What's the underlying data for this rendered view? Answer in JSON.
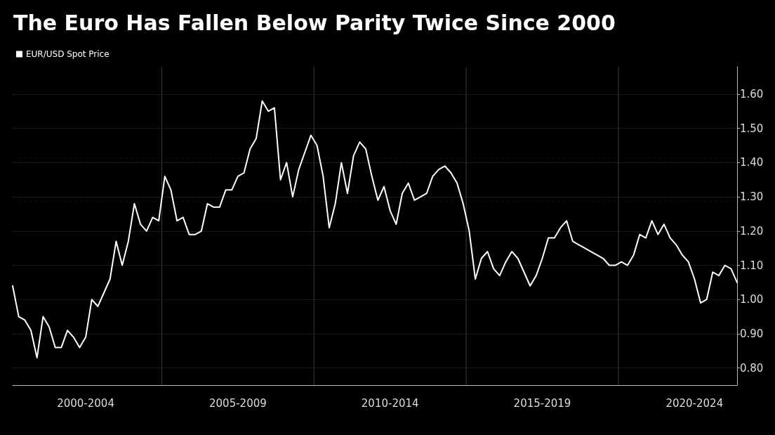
{
  "chart_data": {
    "type": "line",
    "title": "The Euro Has Fallen Below Parity Twice Since 2000",
    "categories": [
      null,
      null,
      null,
      null,
      null,
      null,
      null,
      null,
      null,
      null,
      null,
      null,
      "2000-2004",
      null,
      null,
      null,
      null,
      null,
      null,
      null,
      null,
      null,
      null,
      null,
      null,
      null,
      null,
      null,
      null,
      null,
      null,
      null,
      null,
      null,
      null,
      null,
      null,
      "2005-2009",
      null,
      null,
      null,
      null,
      null,
      null,
      null,
      null,
      null,
      null,
      null,
      null,
      null,
      null,
      null,
      null,
      null,
      null,
      null,
      null,
      null,
      null,
      null,
      null,
      "2010-2014",
      null,
      null,
      null,
      null,
      null,
      null,
      null,
      null,
      null,
      null,
      null,
      null,
      null,
      null,
      null,
      null,
      null,
      null,
      null,
      null,
      null,
      null,
      null,
      null,
      "2015-2019",
      null,
      null,
      null,
      null,
      null,
      null,
      null,
      null,
      null,
      null,
      null,
      null,
      null,
      null,
      null,
      null,
      null,
      null,
      null,
      null,
      null,
      null,
      null,
      null,
      "2020-2024",
      null,
      null,
      null,
      null,
      null,
      null,
      null
    ],
    "ylim": [
      0.75,
      1.68
    ],
    "yticks": [
      {
        "value": 0.8,
        "label": "0.80"
      },
      {
        "value": 0.9,
        "label": "0.90"
      },
      {
        "value": 1.0,
        "label": "1.00"
      },
      {
        "value": 1.1,
        "label": "1.10"
      },
      {
        "value": 1.2,
        "label": "1.20"
      },
      {
        "value": 1.3,
        "label": "1.30"
      },
      {
        "value": 1.4,
        "label": "1.40"
      },
      {
        "value": 1.5,
        "label": "1.50"
      },
      {
        "value": 1.6,
        "label": "1.60"
      }
    ],
    "grid": true,
    "legend": "top left",
    "marker": "none",
    "line_style": "solid",
    "series": [
      {
        "name": "EUR/USD Spot Price",
        "color": "#ffffff",
        "values": [
          1.04,
          0.95,
          0.94,
          0.91,
          0.83,
          0.95,
          0.92,
          0.86,
          0.86,
          0.91,
          0.89,
          0.86,
          0.89,
          1.0,
          0.98,
          1.02,
          1.06,
          1.17,
          1.1,
          1.17,
          1.28,
          1.22,
          1.2,
          1.24,
          1.23,
          1.36,
          1.32,
          1.23,
          1.24,
          1.19,
          1.19,
          1.2,
          1.28,
          1.27,
          1.27,
          1.32,
          1.32,
          1.36,
          1.37,
          1.44,
          1.47,
          1.58,
          1.55,
          1.56,
          1.35,
          1.4,
          1.3,
          1.38,
          1.43,
          1.48,
          1.45,
          1.36,
          1.21,
          1.28,
          1.4,
          1.31,
          1.42,
          1.46,
          1.44,
          1.36,
          1.29,
          1.33,
          1.26,
          1.22,
          1.31,
          1.34,
          1.29,
          1.3,
          1.31,
          1.36,
          1.38,
          1.39,
          1.37,
          1.34,
          1.28,
          1.2,
          1.06,
          1.12,
          1.14,
          1.09,
          1.07,
          1.11,
          1.14,
          1.12,
          1.08,
          1.04,
          1.07,
          1.12,
          1.18,
          1.18,
          1.21,
          1.23,
          1.17,
          1.16,
          1.15,
          1.14,
          1.13,
          1.12,
          1.1,
          1.1,
          1.11,
          1.1,
          1.13,
          1.19,
          1.18,
          1.23,
          1.19,
          1.22,
          1.18,
          1.16,
          1.13,
          1.11,
          1.06,
          0.99,
          1.0,
          1.08,
          1.07,
          1.1,
          1.09,
          1.05
        ]
      }
    ]
  }
}
